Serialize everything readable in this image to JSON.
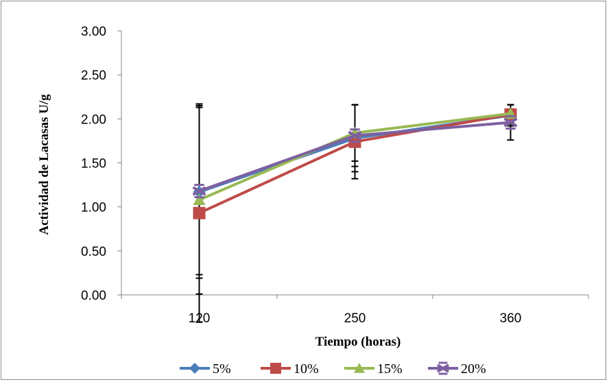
{
  "chart_data": {
    "type": "line",
    "title": "",
    "xlabel": "Tiempo (horas)",
    "ylabel": "Actividad de Lacasas U/g",
    "categories": [
      "120",
      "250",
      "360"
    ],
    "ylim": [
      0,
      3
    ],
    "yticks": [
      "0.00",
      "0.50",
      "1.00",
      "1.50",
      "2.00",
      "2.50",
      "3.00"
    ],
    "grid": false,
    "legend_position": "bottom",
    "series": [
      {
        "name": "5%",
        "color": "#4a7ebb",
        "marker": "diamond",
        "values": [
          1.17,
          1.78,
          2.04
        ],
        "error": [
          0.98,
          0.38,
          0.12
        ]
      },
      {
        "name": "10%",
        "color": "#be4b48",
        "marker": "square",
        "values": [
          0.93,
          1.74,
          2.05
        ],
        "error": [
          1.24,
          0.42,
          0.11
        ]
      },
      {
        "name": "15%",
        "color": "#98b954",
        "marker": "triangle",
        "values": [
          1.08,
          1.84,
          2.06
        ],
        "error": [
          1.07,
          0.32,
          0.1
        ]
      },
      {
        "name": "20%",
        "color": "#7d60a0",
        "marker": "star",
        "values": [
          1.18,
          1.81,
          1.96
        ],
        "error": [
          0.95,
          0.35,
          0.2
        ]
      }
    ]
  }
}
